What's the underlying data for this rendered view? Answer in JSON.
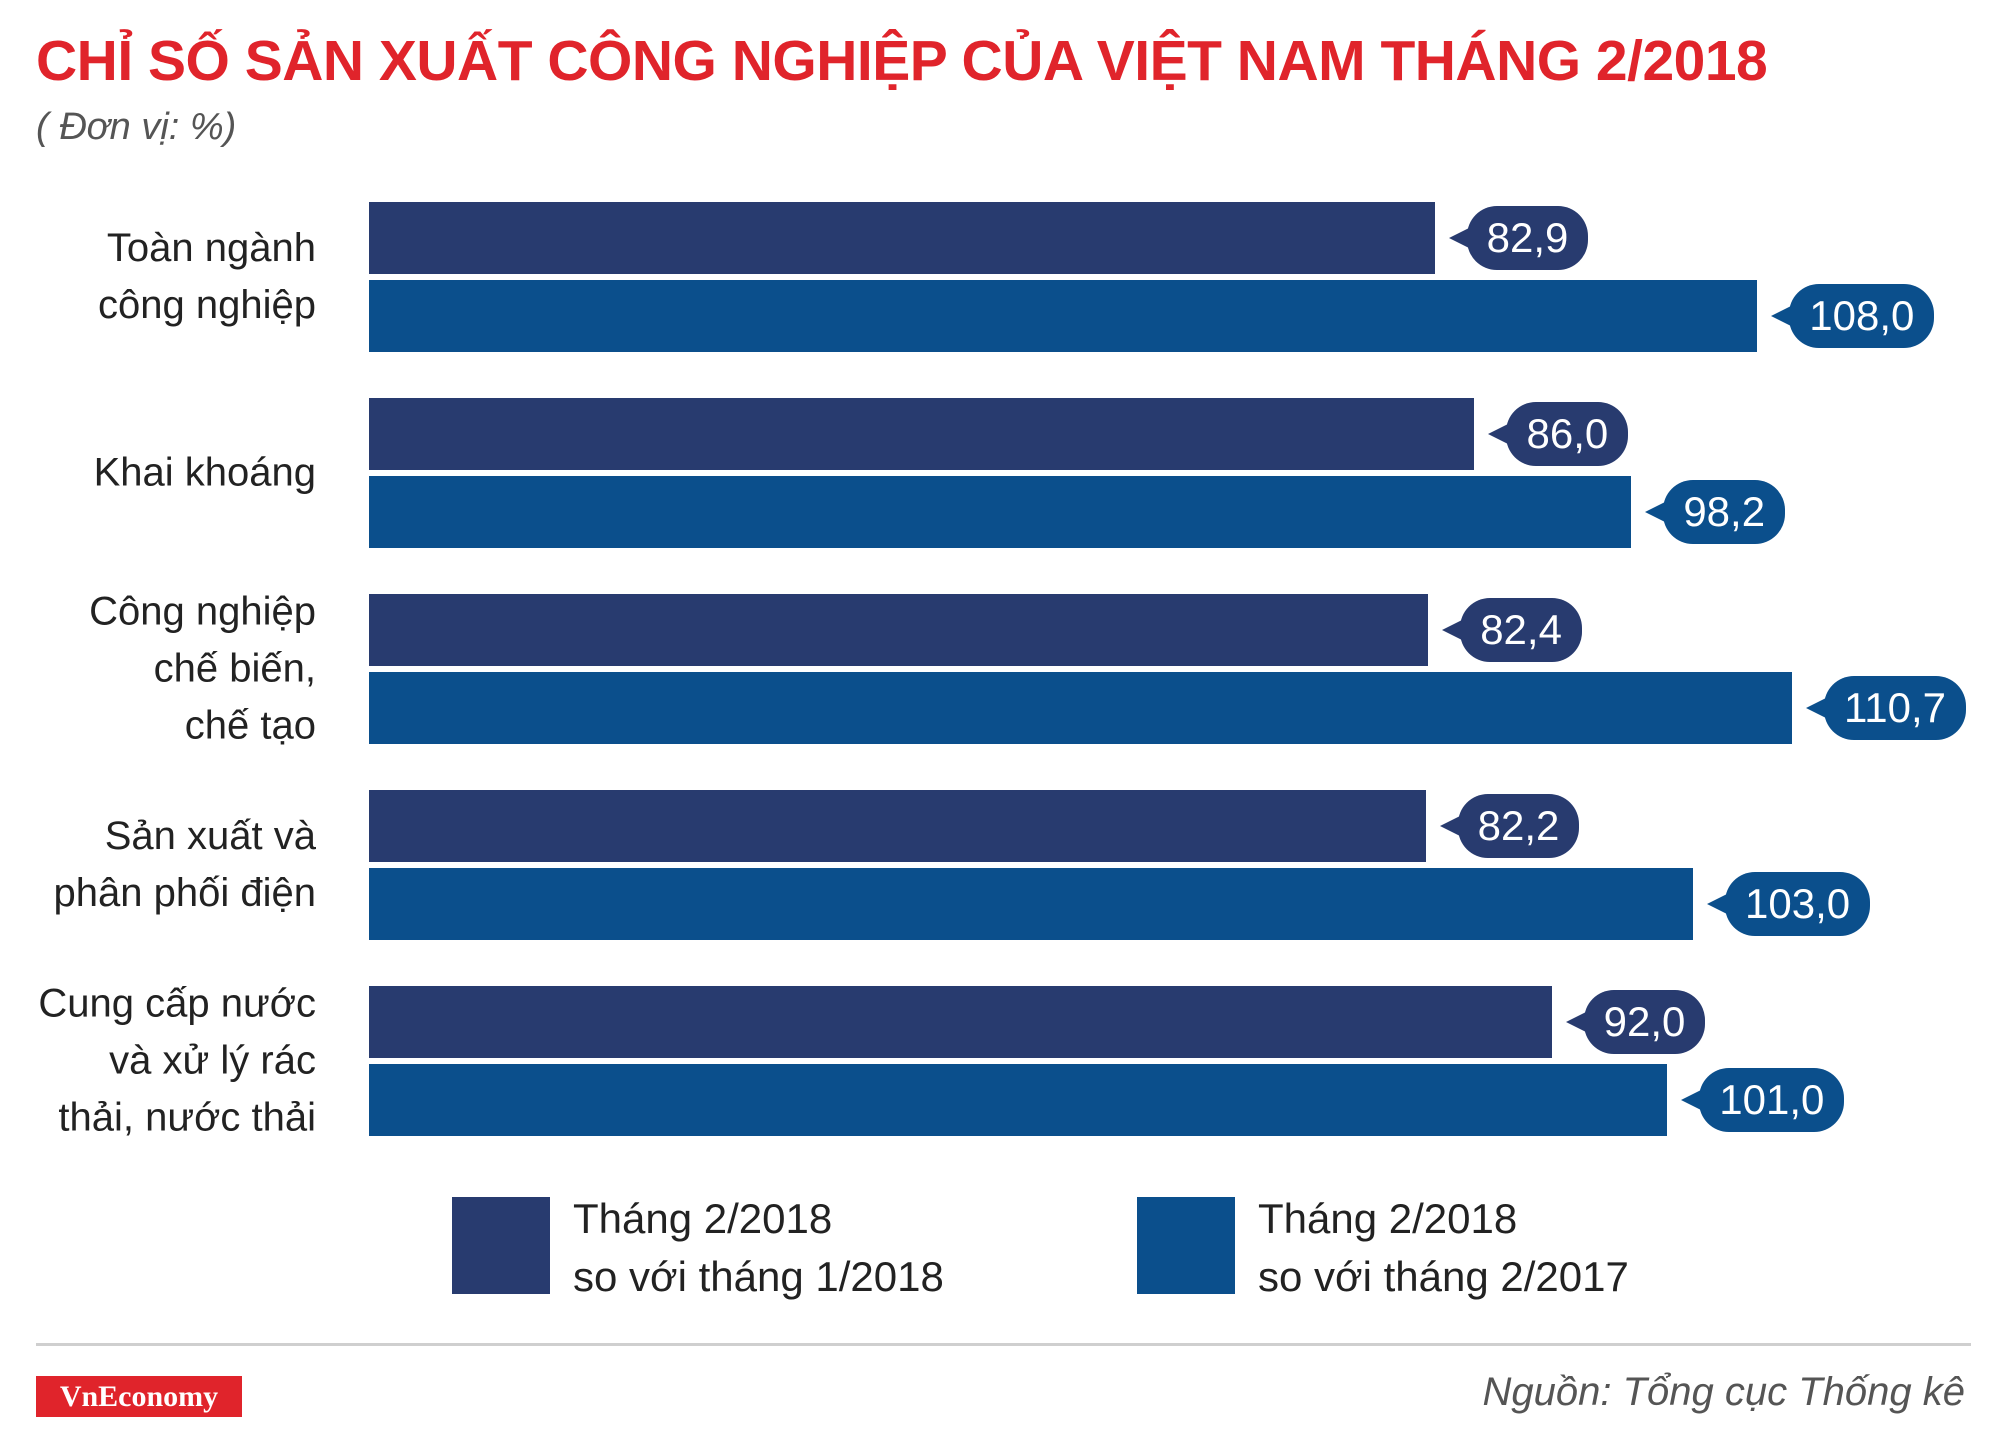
{
  "chart_data": {
    "type": "bar",
    "orientation": "horizontal",
    "title": "CHỈ SỐ SẢN XUẤT CÔNG NGHIỆP CỦA VIỆT NAM THÁNG 2/2018",
    "subtitle": "( Đơn vị: %)",
    "categories": [
      "Toàn ngành\ncông nghiệp",
      "Khai khoáng",
      "Công nghiệp\nchế biến,\nchế tạo",
      "Sản xuất và\nphân phối điện",
      "Cung cấp nước\nvà xử lý rác\nthải, nước thải"
    ],
    "series": [
      {
        "name": "Tháng 2/2018\nso với tháng 1/2018",
        "color": "#283b6f",
        "values": [
          82.9,
          86.0,
          82.4,
          82.2,
          92.0
        ],
        "value_labels": [
          "82,9",
          "86,0",
          "82,4",
          "82,2",
          "92,0"
        ]
      },
      {
        "name": "Tháng 2/2018\nso với tháng 2/2017",
        "color": "#0b4f8c",
        "values": [
          108.0,
          98.2,
          110.7,
          103.0,
          101.0
        ],
        "value_labels": [
          "108,0",
          "98,2",
          "110,7",
          "103,0",
          "101,0"
        ]
      }
    ]
  },
  "brand": "VnEconomy",
  "source": "Nguồn: Tổng cục Thống kê"
}
